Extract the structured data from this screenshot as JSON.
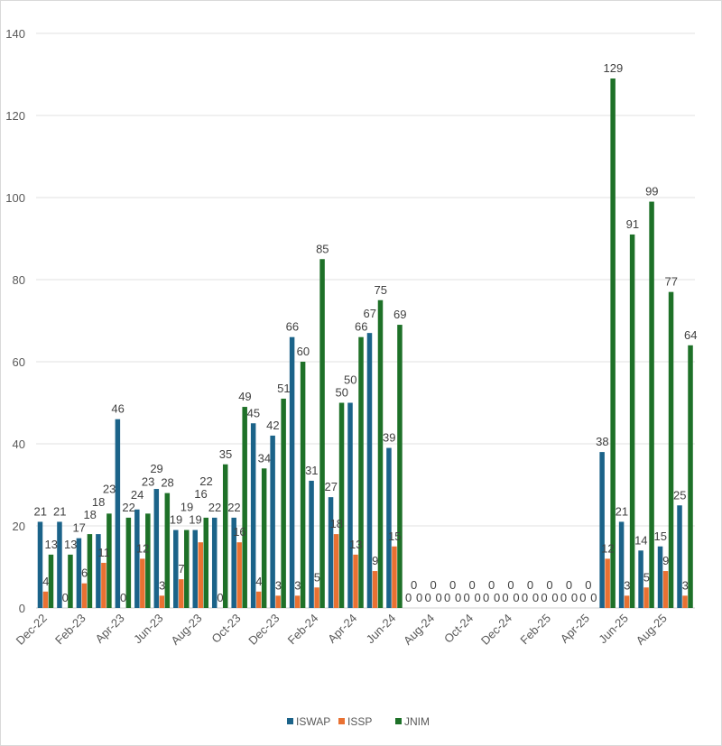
{
  "chart_data": {
    "type": "bar",
    "title": "",
    "xlabel": "",
    "ylabel": "",
    "ylim": [
      0,
      140
    ],
    "yticks": [
      0,
      20,
      40,
      60,
      80,
      100,
      120,
      140
    ],
    "grid": true,
    "legend": "bottom",
    "categories": [
      "Dec-22",
      "Jan-23",
      "Feb-23",
      "Mar-23",
      "Apr-23",
      "May-23",
      "Jun-23",
      "Jul-23",
      "Aug-23",
      "Sep-23",
      "Oct-23",
      "Nov-23",
      "Dec-23",
      "Jan-24",
      "Feb-24",
      "Mar-24",
      "Apr-24",
      "May-24",
      "Jun-24",
      "Jul-24",
      "Aug-24",
      "Sep-24",
      "Oct-24",
      "Nov-24",
      "Dec-24",
      "Jan-25",
      "Feb-25",
      "Mar-25",
      "Apr-25",
      "May-25",
      "Jun-25",
      "Jul-25",
      "Aug-25",
      "Sep-25"
    ],
    "shown_tick_labels": [
      "Dec-22",
      "Feb-23",
      "Apr-23",
      "Jun-23",
      "Aug-23",
      "Oct-23",
      "Dec-23",
      "Feb-24",
      "Apr-24",
      "Jun-24",
      "Aug-24",
      "Oct-24",
      "Dec-24",
      "Feb-25",
      "Apr-25",
      "Jun-25",
      "Aug-25"
    ],
    "series": [
      {
        "name": "ISWAP",
        "color": "#1b6389",
        "values": [
          21,
          21,
          17,
          18,
          46,
          24,
          29,
          19,
          19,
          22,
          22,
          45,
          42,
          66,
          31,
          27,
          50,
          67,
          39,
          0,
          0,
          0,
          0,
          0,
          0,
          0,
          0,
          0,
          0,
          38,
          21,
          14,
          15,
          25
        ]
      },
      {
        "name": "ISSP",
        "color": "#e97132",
        "values": [
          4,
          0,
          6,
          11,
          0,
          12,
          3,
          7,
          16,
          0,
          16,
          4,
          3,
          3,
          5,
          18,
          13,
          9,
          15,
          0,
          0,
          0,
          0,
          0,
          0,
          0,
          0,
          0,
          0,
          12,
          3,
          5,
          9,
          3
        ]
      },
      {
        "name": "JNIM",
        "color": "#1e7128",
        "values": [
          13,
          13,
          18,
          23,
          22,
          23,
          28,
          19,
          22,
          35,
          49,
          34,
          51,
          60,
          85,
          50,
          66,
          75,
          69,
          0,
          0,
          0,
          0,
          0,
          0,
          0,
          0,
          0,
          0,
          129,
          91,
          99,
          77,
          64
        ]
      }
    ]
  }
}
